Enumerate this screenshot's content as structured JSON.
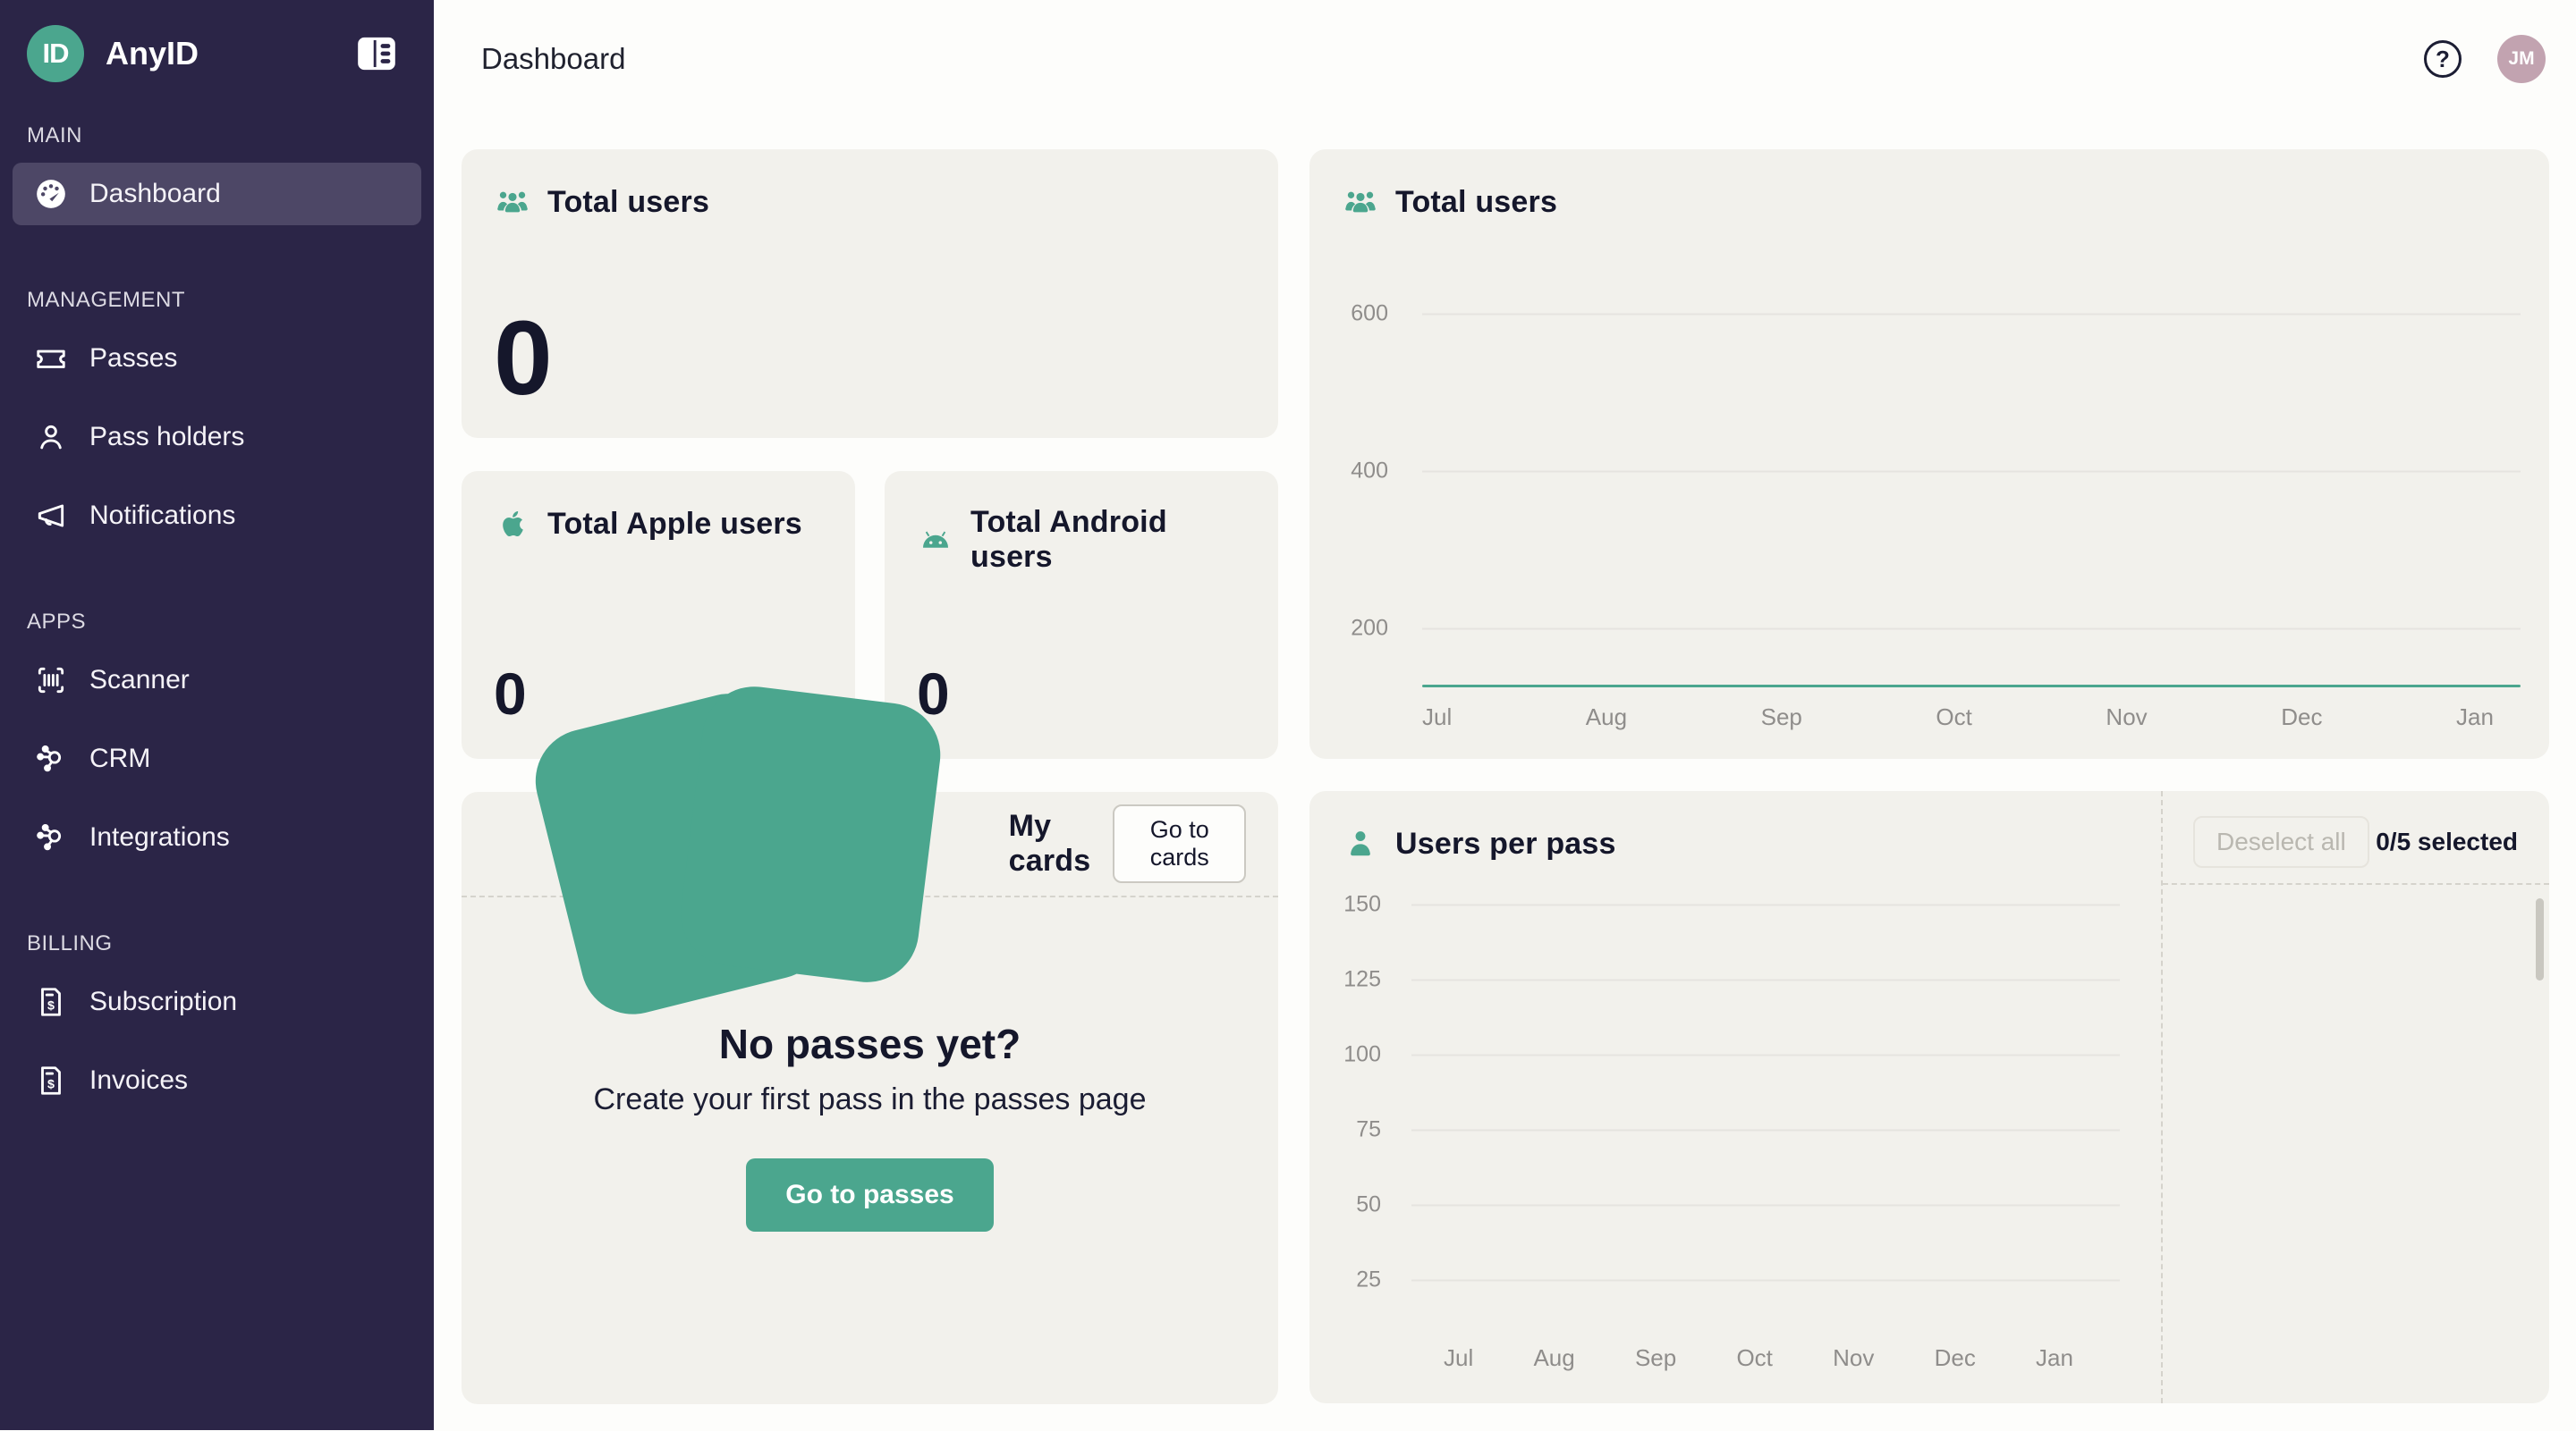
{
  "app": {
    "name": "AnyID",
    "logo_text": "ID"
  },
  "colors": {
    "accent_teal": "#4BA68E",
    "sidebar_bg": "#2B2547",
    "sidebar_active_bg": "#4D4766",
    "card_bg": "#F2F1EC",
    "text_dark": "#15172B",
    "tick_gray": "#8F8D8B",
    "avatar_bg": "#C2A3B0"
  },
  "topbar": {
    "title": "Dashboard",
    "help_icon": "help-circle-icon",
    "avatar_initials": "JM"
  },
  "sidebar": {
    "toggle_icon": "panel-collapse-icon",
    "sections": [
      {
        "label": "MAIN",
        "items": [
          {
            "label": "Dashboard",
            "icon": "gauge-icon",
            "active": true
          }
        ]
      },
      {
        "label": "MANAGEMENT",
        "items": [
          {
            "label": "Passes",
            "icon": "ticket-icon"
          },
          {
            "label": "Pass holders",
            "icon": "person-icon"
          },
          {
            "label": "Notifications",
            "icon": "megaphone-icon"
          }
        ]
      },
      {
        "label": "APPS",
        "items": [
          {
            "label": "Scanner",
            "icon": "barcode-scan-icon"
          },
          {
            "label": "CRM",
            "icon": "hub-icon"
          },
          {
            "label": "Integrations",
            "icon": "hub-icon"
          }
        ]
      },
      {
        "label": "BILLING",
        "items": [
          {
            "label": "Subscription",
            "icon": "invoice-icon"
          },
          {
            "label": "Invoices",
            "icon": "invoice-icon"
          }
        ]
      }
    ]
  },
  "cards": {
    "total_users": {
      "icon": "users-group-icon",
      "title": "Total users",
      "value": "0"
    },
    "total_apple": {
      "icon": "apple-icon",
      "title": "Total Apple users",
      "value": "0"
    },
    "total_android": {
      "icon": "android-icon",
      "title": "Total Android users",
      "value": "0"
    },
    "my_cards": {
      "icon": "cards-icon",
      "title": "My cards",
      "go_to_cards_label": "Go to cards",
      "empty_title": "No passes yet?",
      "empty_subtitle": "Create your first pass in the passes page",
      "go_to_passes_label": "Go to passes"
    },
    "total_users_chart": {
      "icon": "users-group-icon",
      "title": "Total users"
    },
    "users_per_pass": {
      "icon": "user-icon",
      "title": "Users per pass",
      "deselect_label": "Deselect all",
      "selected_label": "0/5 selected"
    }
  },
  "chart_data": [
    {
      "type": "line",
      "title": "Total users",
      "x": [
        "Jul",
        "Aug",
        "Sep",
        "Oct",
        "Nov",
        "Dec",
        "Jan"
      ],
      "series": [
        {
          "name": "Total users",
          "values": [
            0,
            0,
            0,
            0,
            0,
            0,
            0
          ]
        }
      ],
      "yticks": [
        200,
        400,
        600
      ],
      "ylim": [
        0,
        700
      ],
      "grid": true,
      "legend": "none",
      "line_color": "#4BA68E"
    },
    {
      "type": "line",
      "title": "Users per pass",
      "x": [
        "Jul",
        "Aug",
        "Sep",
        "Oct",
        "Nov",
        "Dec",
        "Jan"
      ],
      "series": [],
      "yticks": [
        25,
        50,
        75,
        100,
        125,
        150
      ],
      "ylim": [
        0,
        160
      ],
      "grid": true,
      "legend": "none"
    }
  ]
}
